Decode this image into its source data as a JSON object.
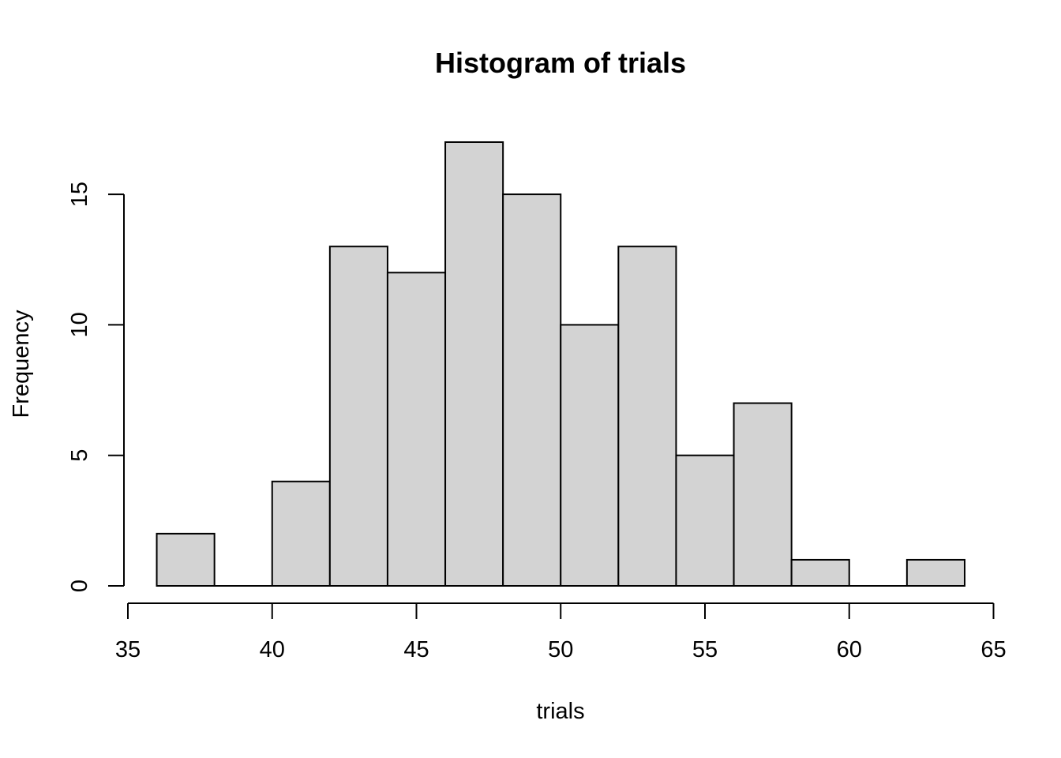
{
  "chart_data": {
    "type": "bar",
    "title": "Histogram of trials",
    "xlabel": "trials",
    "ylabel": "Frequency",
    "bins": [
      {
        "start": 36,
        "end": 38,
        "count": 2
      },
      {
        "start": 38,
        "end": 40,
        "count": 0
      },
      {
        "start": 40,
        "end": 42,
        "count": 4
      },
      {
        "start": 42,
        "end": 44,
        "count": 13
      },
      {
        "start": 44,
        "end": 46,
        "count": 12
      },
      {
        "start": 46,
        "end": 48,
        "count": 17
      },
      {
        "start": 48,
        "end": 50,
        "count": 15
      },
      {
        "start": 50,
        "end": 52,
        "count": 10
      },
      {
        "start": 52,
        "end": 54,
        "count": 13
      },
      {
        "start": 54,
        "end": 56,
        "count": 5
      },
      {
        "start": 56,
        "end": 58,
        "count": 7
      },
      {
        "start": 58,
        "end": 60,
        "count": 1
      },
      {
        "start": 60,
        "end": 62,
        "count": 0
      },
      {
        "start": 62,
        "end": 64,
        "count": 1
      }
    ],
    "xlim": [
      35,
      65
    ],
    "ylim": [
      0,
      17
    ],
    "x_ticks": [
      "35",
      "40",
      "45",
      "50",
      "55",
      "60",
      "65"
    ],
    "y_ticks": [
      "0",
      "5",
      "10",
      "15"
    ],
    "bar_color": "#d3d3d3",
    "grid": false
  }
}
